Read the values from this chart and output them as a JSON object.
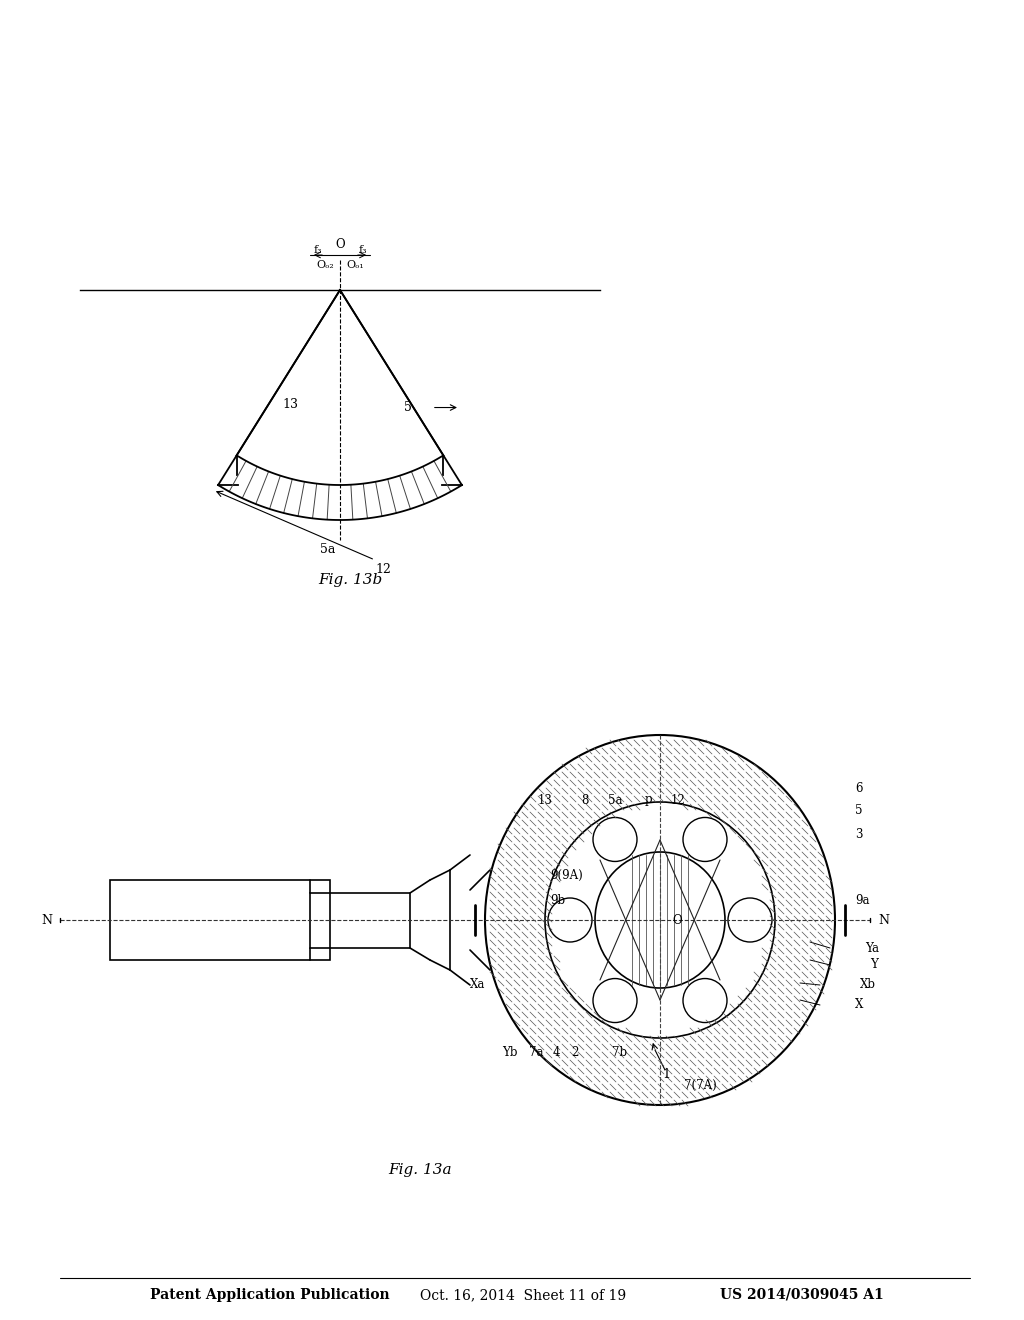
{
  "bg_color": "#ffffff",
  "line_color": "#000000",
  "header_text": "Patent Application Publication",
  "header_date": "Oct. 16, 2014  Sheet 11 of 19",
  "header_patent": "US 2014/0309045 A1",
  "fig_label_a": "Fig. 13a",
  "fig_label_b": "Fig. 13b",
  "font_size_header": 10,
  "font_size_fig": 11,
  "font_size_label": 9
}
